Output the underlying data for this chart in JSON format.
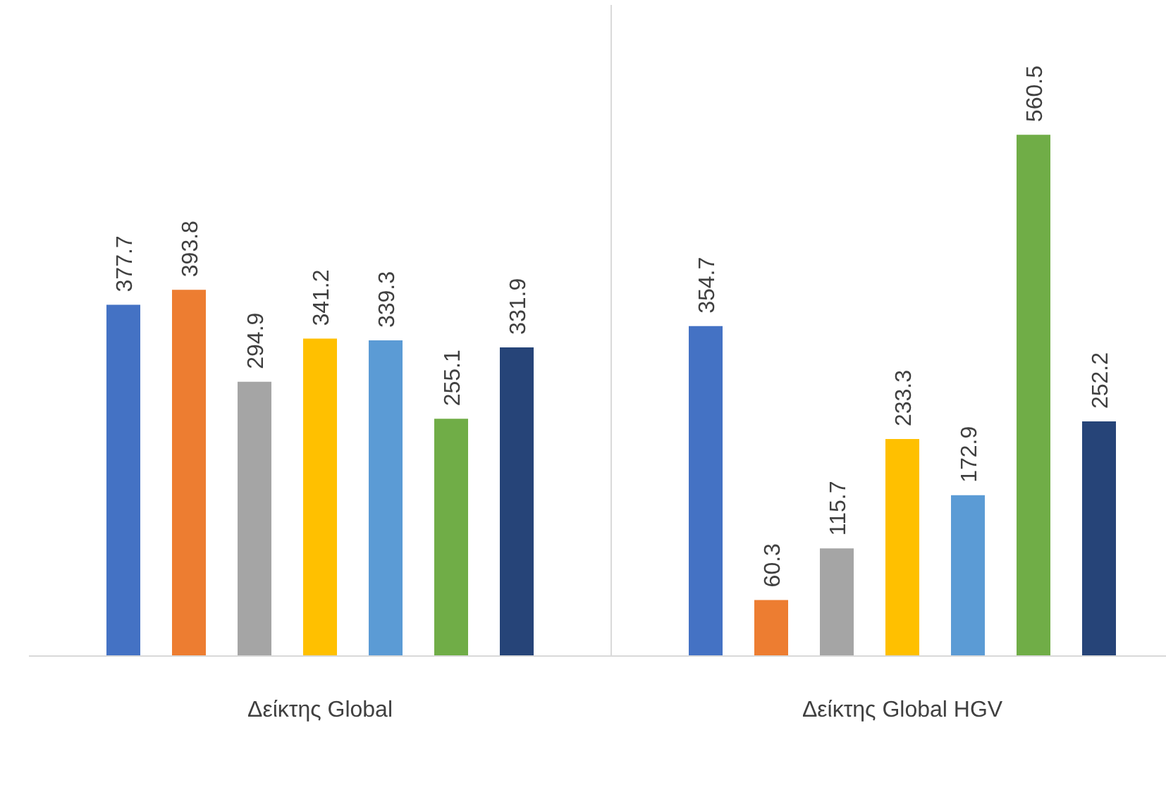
{
  "chart_data": {
    "type": "bar",
    "categories": [
      "Δείκτης Global",
      "Δείκτης Global HGV"
    ],
    "series": [
      {
        "color": "#4472c4",
        "values": [
          377.7,
          354.7
        ]
      },
      {
        "color": "#ed7d31",
        "values": [
          393.8,
          60.3
        ]
      },
      {
        "color": "#a5a5a5",
        "values": [
          294.9,
          115.7
        ]
      },
      {
        "color": "#ffc000",
        "values": [
          341.2,
          233.3
        ]
      },
      {
        "color": "#5b9bd5",
        "values": [
          339.3,
          172.9
        ]
      },
      {
        "color": "#70ad47",
        "values": [
          255.1,
          560.5
        ]
      },
      {
        "color": "#264478",
        "values": [
          331.9,
          252.2
        ]
      }
    ],
    "ylim": [
      0,
      700
    ],
    "data_labels": true,
    "tick_labels": "x"
  }
}
